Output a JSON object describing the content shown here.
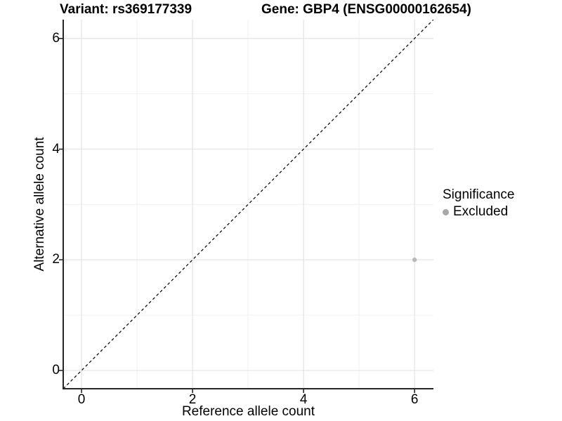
{
  "header": {
    "title_left": "Variant: rs369177339",
    "title_right": "Gene: GBP4 (ENSG00000162654)"
  },
  "chart_data": {
    "type": "scatter",
    "title": "Variant: rs369177339    Gene: GBP4 (ENSG00000162654)",
    "xlabel": "Reference allele count",
    "ylabel": "Alternative allele count",
    "xlim": [
      -0.33,
      6.34
    ],
    "ylim": [
      -0.33,
      6.34
    ],
    "xticks": [
      0,
      2,
      4,
      6
    ],
    "yticks": [
      0,
      2,
      4,
      6
    ],
    "minor_xticks": [
      1,
      3,
      5
    ],
    "minor_yticks": [
      1,
      3,
      5
    ],
    "grid": "major+minor",
    "identity_line": {
      "style": "dashed",
      "color": "#111111",
      "from": [
        -0.33,
        -0.33
      ],
      "to": [
        6.34,
        6.34
      ]
    },
    "series": [
      {
        "name": "Excluded",
        "color": "#b9b9b9",
        "points": [
          {
            "x": 6,
            "y": 2
          }
        ]
      }
    ],
    "legend": {
      "title": "Significance",
      "position": "right",
      "entries": [
        {
          "label": "Excluded",
          "color": "#a8a8a8",
          "marker": "circle"
        }
      ]
    }
  },
  "style_colors": {
    "axis_line": "#262626",
    "tick_mark": "#262626",
    "major_grid": "#e5e5e5",
    "minor_grid": "#f0f0f0",
    "background": "#ffffff",
    "text": "#000000"
  }
}
